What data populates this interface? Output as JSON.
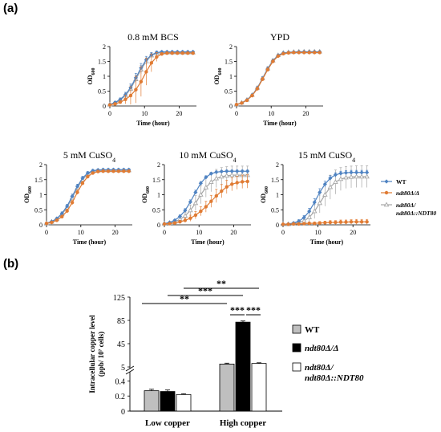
{
  "panel_labels": [
    "(a)",
    "(b)"
  ],
  "chart_data": [
    {
      "type": "line",
      "title": "0.8 mM BCS",
      "xlabel": "Time (hour)",
      "ylabel_main": "OD",
      "ylabel_sub": "600",
      "xlim": [
        0,
        25
      ],
      "ylim": [
        0,
        2
      ],
      "xticks": [
        0,
        10,
        20
      ],
      "yticks": [
        0,
        0.5,
        1,
        1.5,
        2
      ],
      "x": [
        0,
        1.5,
        3,
        4.5,
        6,
        7.5,
        9,
        10.5,
        12,
        13.5,
        15,
        16.5,
        18,
        19.5,
        21,
        22.5,
        24
      ],
      "series": [
        {
          "values": [
            0.05,
            0.12,
            0.22,
            0.38,
            0.62,
            0.95,
            1.28,
            1.55,
            1.72,
            1.8,
            1.82,
            1.82,
            1.82,
            1.82,
            1.82,
            1.82,
            1.82
          ],
          "err": [
            0.02,
            0.03,
            0.05,
            0.08,
            0.12,
            0.15,
            0.15,
            0.12,
            0.08,
            0.05,
            0.04,
            0.04,
            0.04,
            0.04,
            0.04,
            0.04,
            0.04
          ]
        },
        {
          "values": [
            0.04,
            0.07,
            0.13,
            0.22,
            0.35,
            0.55,
            0.82,
            1.15,
            1.45,
            1.65,
            1.75,
            1.78,
            1.78,
            1.78,
            1.78,
            1.78,
            1.78
          ],
          "err": [
            0.02,
            0.03,
            0.06,
            0.15,
            0.3,
            0.45,
            0.5,
            0.45,
            0.3,
            0.15,
            0.05,
            0.04,
            0.04,
            0.04,
            0.04,
            0.04,
            0.04
          ]
        },
        {
          "values": [
            0.05,
            0.1,
            0.2,
            0.35,
            0.58,
            0.9,
            1.22,
            1.5,
            1.7,
            1.78,
            1.8,
            1.8,
            1.8,
            1.8,
            1.8,
            1.8,
            1.8
          ],
          "err": [
            0.02,
            0.03,
            0.05,
            0.08,
            0.12,
            0.14,
            0.14,
            0.12,
            0.08,
            0.05,
            0.04,
            0.04,
            0.04,
            0.04,
            0.04,
            0.04,
            0.04
          ]
        }
      ]
    },
    {
      "type": "line",
      "title": "YPD",
      "xlabel": "Time (hour)",
      "ylabel_main": "OD",
      "ylabel_sub": "600",
      "xlim": [
        0,
        25
      ],
      "ylim": [
        0,
        2
      ],
      "xticks": [
        0,
        10,
        20
      ],
      "yticks": [
        0,
        0.5,
        1,
        1.5,
        2
      ],
      "x": [
        0,
        1.5,
        3,
        4.5,
        6,
        7.5,
        9,
        10.5,
        12,
        13.5,
        15,
        16.5,
        18,
        19.5,
        21,
        22.5,
        24
      ],
      "series": [
        {
          "values": [
            0.05,
            0.1,
            0.2,
            0.36,
            0.6,
            0.92,
            1.25,
            1.52,
            1.7,
            1.78,
            1.8,
            1.81,
            1.82,
            1.82,
            1.82,
            1.82,
            1.82
          ],
          "err": [
            0.02,
            0.02,
            0.03,
            0.04,
            0.05,
            0.06,
            0.06,
            0.05,
            0.04,
            0.03,
            0.03,
            0.03,
            0.03,
            0.03,
            0.03,
            0.03,
            0.03
          ]
        },
        {
          "values": [
            0.05,
            0.1,
            0.19,
            0.35,
            0.58,
            0.9,
            1.22,
            1.5,
            1.68,
            1.76,
            1.79,
            1.8,
            1.8,
            1.8,
            1.8,
            1.8,
            1.8
          ],
          "err": [
            0.02,
            0.02,
            0.03,
            0.04,
            0.05,
            0.06,
            0.06,
            0.05,
            0.04,
            0.03,
            0.03,
            0.03,
            0.03,
            0.03,
            0.03,
            0.03,
            0.03
          ]
        },
        {
          "values": [
            0.05,
            0.11,
            0.21,
            0.37,
            0.61,
            0.93,
            1.26,
            1.53,
            1.71,
            1.79,
            1.81,
            1.82,
            1.83,
            1.83,
            1.83,
            1.83,
            1.83
          ],
          "err": [
            0.02,
            0.02,
            0.03,
            0.04,
            0.05,
            0.06,
            0.06,
            0.05,
            0.04,
            0.03,
            0.03,
            0.03,
            0.03,
            0.03,
            0.03,
            0.03,
            0.03
          ]
        }
      ]
    },
    {
      "type": "line",
      "title": "5 mM CuSO",
      "title_sub": "4",
      "xlabel": "Time (hour)",
      "ylabel_main": "OD",
      "ylabel_sub": "600",
      "xlim": [
        0,
        25
      ],
      "ylim": [
        0,
        2
      ],
      "xticks": [
        0,
        10,
        20
      ],
      "yticks": [
        0,
        0.5,
        1,
        1.5,
        2
      ],
      "x": [
        0,
        1.5,
        3,
        4.5,
        6,
        7.5,
        9,
        10.5,
        12,
        13.5,
        15,
        16.5,
        18,
        19.5,
        21,
        22.5,
        24
      ],
      "series": [
        {
          "values": [
            0.05,
            0.11,
            0.21,
            0.38,
            0.62,
            0.95,
            1.28,
            1.55,
            1.72,
            1.8,
            1.82,
            1.83,
            1.83,
            1.83,
            1.83,
            1.83,
            1.83
          ],
          "err": [
            0.02,
            0.02,
            0.03,
            0.05,
            0.06,
            0.07,
            0.07,
            0.06,
            0.05,
            0.04,
            0.04,
            0.04,
            0.04,
            0.04,
            0.04,
            0.04,
            0.04
          ]
        },
        {
          "values": [
            0.05,
            0.08,
            0.15,
            0.27,
            0.46,
            0.74,
            1.08,
            1.38,
            1.6,
            1.72,
            1.77,
            1.78,
            1.78,
            1.78,
            1.78,
            1.78,
            1.78
          ],
          "err": [
            0.02,
            0.02,
            0.03,
            0.05,
            0.06,
            0.07,
            0.07,
            0.06,
            0.05,
            0.04,
            0.04,
            0.04,
            0.04,
            0.04,
            0.04,
            0.04,
            0.04
          ]
        },
        {
          "values": [
            0.05,
            0.1,
            0.19,
            0.35,
            0.58,
            0.9,
            1.23,
            1.5,
            1.68,
            1.77,
            1.8,
            1.81,
            1.81,
            1.81,
            1.81,
            1.81,
            1.81
          ],
          "err": [
            0.02,
            0.02,
            0.03,
            0.05,
            0.06,
            0.07,
            0.07,
            0.06,
            0.05,
            0.04,
            0.04,
            0.04,
            0.04,
            0.04,
            0.04,
            0.04,
            0.04
          ]
        }
      ]
    },
    {
      "type": "line",
      "title": "10 mM  CuSO",
      "title_sub": "4",
      "xlabel": "Time (hour)",
      "ylabel_main": "OD",
      "ylabel_sub": "600",
      "xlim": [
        0,
        25
      ],
      "ylim": [
        0,
        2
      ],
      "xticks": [
        0,
        10,
        20
      ],
      "yticks": [
        0,
        0.5,
        1,
        1.5,
        2
      ],
      "x": [
        0,
        1.5,
        3,
        4.5,
        6,
        7.5,
        9,
        10.5,
        12,
        13.5,
        15,
        16.5,
        18,
        19.5,
        21,
        22.5,
        24
      ],
      "series": [
        {
          "values": [
            0.04,
            0.08,
            0.15,
            0.28,
            0.48,
            0.76,
            1.08,
            1.38,
            1.58,
            1.7,
            1.75,
            1.77,
            1.78,
            1.78,
            1.78,
            1.78,
            1.78
          ],
          "err": [
            0.02,
            0.02,
            0.03,
            0.05,
            0.06,
            0.07,
            0.07,
            0.06,
            0.05,
            0.04,
            0.04,
            0.04,
            0.04,
            0.04,
            0.04,
            0.04,
            0.04
          ]
        },
        {
          "values": [
            0.03,
            0.04,
            0.06,
            0.1,
            0.15,
            0.22,
            0.32,
            0.45,
            0.6,
            0.78,
            0.96,
            1.12,
            1.26,
            1.35,
            1.4,
            1.43,
            1.44
          ],
          "err": [
            0.01,
            0.02,
            0.03,
            0.05,
            0.07,
            0.1,
            0.12,
            0.15,
            0.18,
            0.2,
            0.22,
            0.22,
            0.22,
            0.22,
            0.22,
            0.22,
            0.22
          ]
        },
        {
          "values": [
            0.04,
            0.06,
            0.1,
            0.18,
            0.3,
            0.48,
            0.72,
            1.0,
            1.24,
            1.42,
            1.54,
            1.6,
            1.63,
            1.65,
            1.65,
            1.65,
            1.65
          ],
          "err": [
            0.02,
            0.03,
            0.05,
            0.08,
            0.12,
            0.18,
            0.25,
            0.3,
            0.32,
            0.32,
            0.3,
            0.3,
            0.3,
            0.3,
            0.3,
            0.3,
            0.3
          ]
        }
      ]
    },
    {
      "type": "line",
      "title": "15 mM CuSO",
      "title_sub": "4",
      "xlabel": "Time (hour)",
      "ylabel_main": "OD",
      "ylabel_sub": "600",
      "xlim": [
        0,
        25
      ],
      "ylim": [
        0,
        2
      ],
      "xticks": [
        0,
        10,
        20
      ],
      "yticks": [
        0,
        0.5,
        1,
        1.5,
        2
      ],
      "x": [
        0,
        1.5,
        3,
        4.5,
        6,
        7.5,
        9,
        10.5,
        12,
        13.5,
        15,
        16.5,
        18,
        19.5,
        21,
        22.5,
        24
      ],
      "series": [
        {
          "values": [
            0.02,
            0.03,
            0.06,
            0.12,
            0.24,
            0.45,
            0.75,
            1.08,
            1.35,
            1.55,
            1.66,
            1.71,
            1.73,
            1.74,
            1.74,
            1.74,
            1.74
          ],
          "err": [
            0.01,
            0.02,
            0.03,
            0.05,
            0.07,
            0.1,
            0.12,
            0.12,
            0.1,
            0.08,
            0.07,
            0.07,
            0.07,
            0.07,
            0.07,
            0.07,
            0.07
          ]
        },
        {
          "values": [
            0.02,
            0.02,
            0.03,
            0.03,
            0.04,
            0.05,
            0.05,
            0.06,
            0.07,
            0.08,
            0.08,
            0.09,
            0.09,
            0.1,
            0.1,
            0.1,
            0.1
          ],
          "err": [
            0.01,
            0.01,
            0.02,
            0.02,
            0.03,
            0.04,
            0.04,
            0.05,
            0.05,
            0.06,
            0.06,
            0.07,
            0.07,
            0.07,
            0.08,
            0.08,
            0.08
          ]
        },
        {
          "values": [
            0.02,
            0.02,
            0.04,
            0.07,
            0.13,
            0.25,
            0.45,
            0.72,
            1.0,
            1.25,
            1.42,
            1.52,
            1.57,
            1.59,
            1.6,
            1.6,
            1.6
          ],
          "err": [
            0.01,
            0.02,
            0.03,
            0.06,
            0.1,
            0.16,
            0.24,
            0.32,
            0.38,
            0.4,
            0.4,
            0.38,
            0.36,
            0.36,
            0.36,
            0.36,
            0.36
          ]
        }
      ]
    },
    {
      "type": "bar",
      "ylabel_lines": [
        "Intracellular copper level",
        "(ppb/ 10⁷ cells)"
      ],
      "categories": [
        "Low copper",
        "High copper"
      ],
      "axis_break": true,
      "ylim_lower": [
        0,
        0.5
      ],
      "ylim_upper": [
        5,
        125
      ],
      "yticks_lower": [
        0,
        0.2,
        0.4
      ],
      "yticks_upper": [
        5,
        45,
        85,
        125
      ],
      "series": [
        {
          "values": [
            0.27,
            10
          ],
          "err": [
            0.02,
            1.5
          ]
        },
        {
          "values": [
            0.26,
            82
          ],
          "err": [
            0.02,
            2
          ]
        },
        {
          "values": [
            0.22,
            11
          ],
          "err": [
            0.01,
            1.2
          ]
        }
      ],
      "significance": [
        {
          "label": "***",
          "level": 1
        },
        {
          "label": "***",
          "level": 1
        },
        {
          "label": "**",
          "level": 2
        },
        {
          "label": "***",
          "level": 3
        },
        {
          "label": "**",
          "level": 4
        }
      ]
    }
  ],
  "legend_a": [
    {
      "text": "WT",
      "color": "#4f83c2",
      "marker": "diamond"
    },
    {
      "text": "ndt80Δ/Δ",
      "color": "#e07b33",
      "marker": "circle"
    },
    {
      "text1": "ndt80Δ/",
      "text2": "ndt80Δ::",
      "text2b": "NDT80",
      "color": "#a6a6a6",
      "marker": "triangle"
    }
  ],
  "legend_b": [
    {
      "text": "WT",
      "fill": "#bfbfbf"
    },
    {
      "text": "ndt80Δ/Δ",
      "fill": "#000000"
    },
    {
      "text1": "ndt80Δ/",
      "text2": "ndt80Δ::",
      "text2b": "NDT80",
      "fill": "#ffffff"
    }
  ]
}
